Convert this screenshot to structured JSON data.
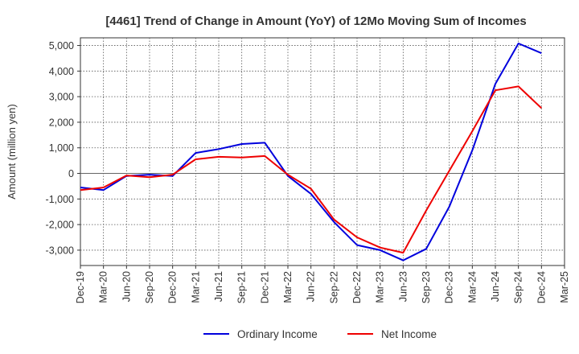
{
  "chart_data": {
    "type": "line",
    "title": "[4461]  Trend of Change in Amount (YoY) of 12Mo Moving Sum of Incomes",
    "ylabel": "Amount (million yen)",
    "xlabel": "",
    "ylim": [
      -3600,
      5300
    ],
    "yticks": [
      -3000,
      -2000,
      -1000,
      0,
      1000,
      2000,
      3000,
      4000,
      5000
    ],
    "ytick_labels": [
      "-3,000",
      "-2,000",
      "-1,000",
      "0",
      "1,000",
      "2,000",
      "3,000",
      "4,000",
      "5,000"
    ],
    "x_tick_labels": [
      "Dec-19",
      "Mar-20",
      "Jun-20",
      "Sep-20",
      "Dec-20",
      "Mar-21",
      "Jun-21",
      "Sep-21",
      "Dec-21",
      "Mar-22",
      "Jun-22",
      "Sep-22",
      "Dec-22",
      "Mar-23",
      "Jun-23",
      "Sep-23",
      "Dec-23",
      "Mar-24",
      "Jun-24",
      "Sep-24",
      "Dec-24",
      "Mar-25"
    ],
    "grid": true,
    "legend_position": "bottom",
    "series": [
      {
        "name": "Ordinary Income",
        "color": "#0000dd",
        "values": [
          -550,
          -650,
          -100,
          -50,
          -100,
          800,
          950,
          1150,
          1200,
          -100,
          -800,
          -1900,
          -2800,
          -3000,
          -3400,
          -2950,
          -1300,
          900,
          3500,
          5080,
          4700
        ]
      },
      {
        "name": "Net Income",
        "color": "#ee0000",
        "values": [
          -650,
          -550,
          -80,
          -150,
          -50,
          550,
          650,
          620,
          680,
          -50,
          -600,
          -1800,
          -2500,
          -2900,
          -3100,
          -1450,
          100,
          1650,
          3250,
          3400,
          2550
        ]
      }
    ]
  }
}
